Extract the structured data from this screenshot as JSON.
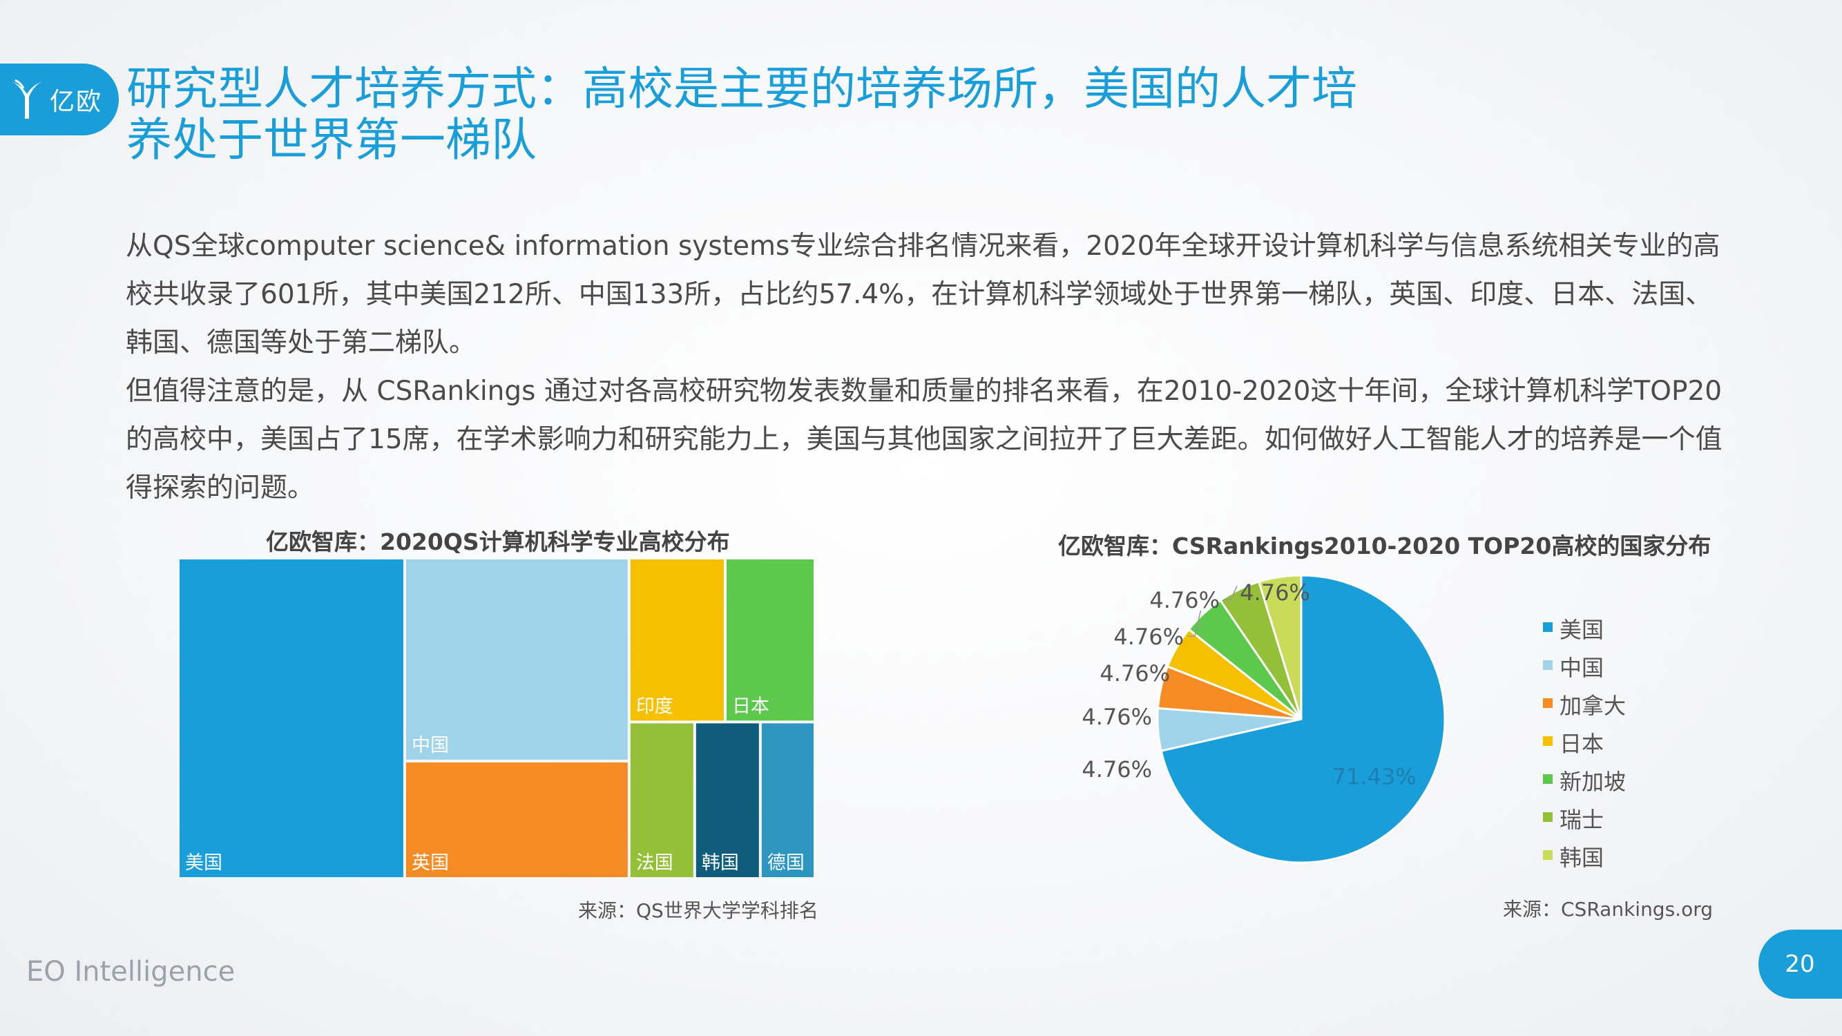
{
  "logo": {
    "text": "亿欧"
  },
  "slide_title": [
    "研究型人才培养方式：高校是主要的培养场所，美国的人才培",
    "养处于世界第一梯队"
  ],
  "paragraphs": [
    "从QS全球computer science& information systems专业综合排名情况来看，2020年全球开设计算机科学与信息系统相关专业的高校共收录了601所，其中美国212所、中国133所，占比约57.4%，在计算机科学领域处于世界第一梯队，英国、印度、日本、法国、韩国、德国等处于第二梯队。",
    "但值得注意的是，从 CSRankings 通过对各高校研究物发表数量和质量的排名来看，在2010-2020这十年间，全球计算机科学TOP20的高校中，美国占了15席，在学术影响力和研究能力上，美国与其他国家之间拉开了巨大差距。如何做好人工智能人才的培养是一个值得探索的问题。"
  ],
  "left_chart": {
    "title": "亿欧智库：2020QS计算机科学专业高校分布",
    "source": "来源：QS世界大学学科排名"
  },
  "right_chart": {
    "title": "亿欧智库：CSRankings2010-2020 TOP20高校的国家分布",
    "source": "来源：CSRankings.org"
  },
  "chart_data": [
    {
      "type": "treemap",
      "title": "亿欧智库：2020QS计算机科学专业高校分布",
      "categories": [
        "美国",
        "中国",
        "英国",
        "印度",
        "日本",
        "法国",
        "韩国",
        "德国"
      ],
      "values": [
        212,
        133,
        77,
        46,
        43,
        30,
        30,
        25
      ],
      "colors": [
        "#1a9ed9",
        "#9ed3ea",
        "#f58b23",
        "#f5c000",
        "#5cc94c",
        "#94bf38",
        "#0f5c7d",
        "#2c95c0"
      ]
    },
    {
      "type": "pie",
      "title": "亿欧智库：CSRankings2010-2020 TOP20高校的国家分布",
      "categories": [
        "美国",
        "中国",
        "加拿大",
        "日本",
        "新加坡",
        "瑞士",
        "韩国"
      ],
      "values": [
        71.43,
        4.76,
        4.76,
        4.76,
        4.76,
        4.76,
        4.76
      ],
      "data_labels": [
        "71.43%",
        "4.76%",
        "4.76%",
        "4.76%",
        "4.76%",
        "4.76%",
        "4.76%"
      ],
      "colors": [
        "#1a9ed9",
        "#9ed3ea",
        "#f58b23",
        "#f5c000",
        "#5cc94c",
        "#94bf38",
        "#c8dc5a"
      ],
      "legend": "right"
    }
  ],
  "footer": {
    "brand": "EO Intelligence",
    "page": "20"
  }
}
